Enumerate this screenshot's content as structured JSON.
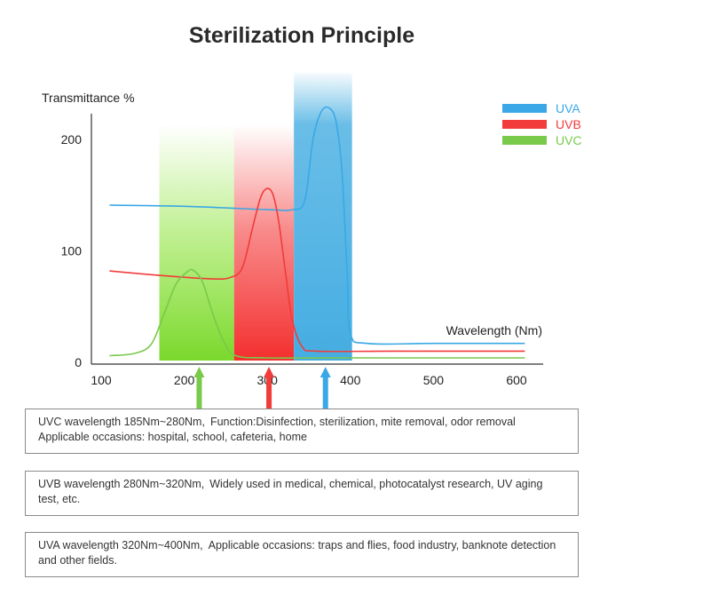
{
  "title": "Sterilization Principle",
  "chart_data": {
    "type": "line",
    "ylabel": "Transmittance %",
    "xlabel": "Wavelength (Nm)",
    "xlim": [
      100,
      620
    ],
    "ylim": [
      0,
      230
    ],
    "xticks": [
      100,
      200,
      300,
      400,
      500,
      600
    ],
    "yticks": [
      0,
      100,
      200
    ],
    "grid": false,
    "legend_position": "top-right",
    "bands": [
      {
        "name": "UVC",
        "from": 170,
        "to": 260,
        "color": "#8ee43c"
      },
      {
        "name": "UVB",
        "from": 260,
        "to": 332,
        "color": "#f43c3c"
      },
      {
        "name": "UVA",
        "from": 332,
        "to": 402,
        "color": "#4fb2e3"
      }
    ],
    "series": [
      {
        "name": "UVA",
        "color": "#3aa8e6",
        "points": [
          [
            110,
            141
          ],
          [
            200,
            140
          ],
          [
            300,
            137
          ],
          [
            330,
            137
          ],
          [
            345,
            145
          ],
          [
            355,
            200
          ],
          [
            365,
            225
          ],
          [
            375,
            228
          ],
          [
            383,
            215
          ],
          [
            390,
            170
          ],
          [
            396,
            80
          ],
          [
            400,
            26
          ],
          [
            420,
            17
          ],
          [
            500,
            17
          ],
          [
            610,
            17
          ]
        ]
      },
      {
        "name": "UVB",
        "color": "#f23b3b",
        "points": [
          [
            110,
            82
          ],
          [
            170,
            78
          ],
          [
            230,
            75
          ],
          [
            255,
            76
          ],
          [
            270,
            85
          ],
          [
            282,
            120
          ],
          [
            292,
            148
          ],
          [
            300,
            156
          ],
          [
            307,
            150
          ],
          [
            314,
            125
          ],
          [
            322,
            80
          ],
          [
            330,
            38
          ],
          [
            342,
            14
          ],
          [
            360,
            10
          ],
          [
            450,
            10
          ],
          [
            610,
            10
          ]
        ]
      },
      {
        "name": "UVC",
        "color": "#79c94a",
        "points": [
          [
            110,
            6
          ],
          [
            140,
            8
          ],
          [
            160,
            16
          ],
          [
            175,
            42
          ],
          [
            190,
            70
          ],
          [
            205,
            82
          ],
          [
            212,
            82
          ],
          [
            222,
            72
          ],
          [
            235,
            42
          ],
          [
            248,
            18
          ],
          [
            262,
            6
          ],
          [
            300,
            4
          ],
          [
            400,
            4
          ],
          [
            610,
            4
          ]
        ]
      }
    ],
    "markers": [
      {
        "series": "UVC",
        "x": 218
      },
      {
        "series": "UVB",
        "x": 302
      },
      {
        "series": "UVA",
        "x": 370
      }
    ]
  },
  "descriptions": [
    {
      "band": "UVC",
      "wavelength": "UVC wavelength 185Nm~280Nm,",
      "detail": "Function:Disinfection, sterilization, mite removal, odor removal Applicable occasions: hospital, school, cafeteria, home"
    },
    {
      "band": "UVB",
      "wavelength": "UVB wavelength 280Nm~320Nm,",
      "detail": "Widely used in medical, chemical, photocatalyst research, UV aging test, etc."
    },
    {
      "band": "UVA",
      "wavelength": "UVA wavelength 320Nm~400Nm,",
      "detail": "Applicable occasions: traps and flies, food industry, banknote detection and other fields."
    }
  ]
}
